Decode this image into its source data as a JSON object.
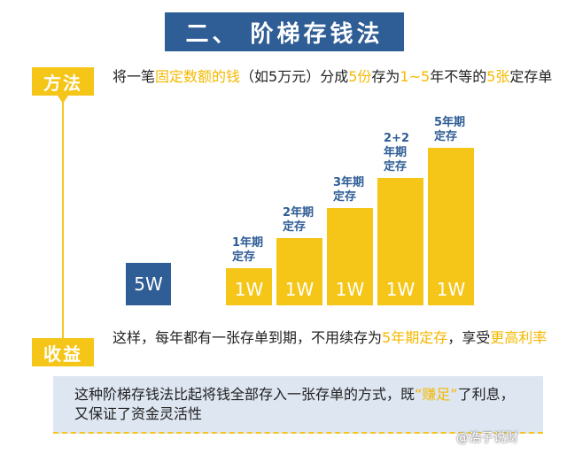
{
  "title": "二、 阶梯存钱法",
  "method": {
    "tag": "方法",
    "parts": [
      "将一笔",
      "固定数额的钱",
      "（如5万元）分成",
      "5份",
      "存为",
      "1~5",
      "年不等的",
      "5张",
      "定存单"
    ]
  },
  "chart": {
    "total_label": "5W",
    "bars": [
      {
        "label_lines": [
          "1年期",
          "定存"
        ],
        "amount": "1W",
        "years": 1
      },
      {
        "label_lines": [
          "2年期",
          "定存"
        ],
        "amount": "1W",
        "years": 2
      },
      {
        "label_lines": [
          "3年期",
          "定存"
        ],
        "amount": "1W",
        "years": 3
      },
      {
        "label_lines": [
          "2+2",
          "年期",
          "定存"
        ],
        "amount": "1W",
        "years": 4
      },
      {
        "label_lines": [
          "5年期",
          "定存"
        ],
        "amount": "1W",
        "years": 5
      }
    ]
  },
  "benefit": {
    "tag": "收益",
    "parts": [
      "这样，每年都有一张存单到期，不用续存为",
      "5年期定存",
      "，享受",
      "更高利率"
    ]
  },
  "note": {
    "parts": [
      "这种阶梯存钱法比起将钱全部存入一张存单的方式，既",
      "“赚足”",
      "了利息，又保证了资金灵活性"
    ]
  },
  "watermark": "@浩子说财",
  "colors": {
    "accent": "#f5c518",
    "primary": "#2f5d95",
    "note_bg": "#dde6f1"
  }
}
